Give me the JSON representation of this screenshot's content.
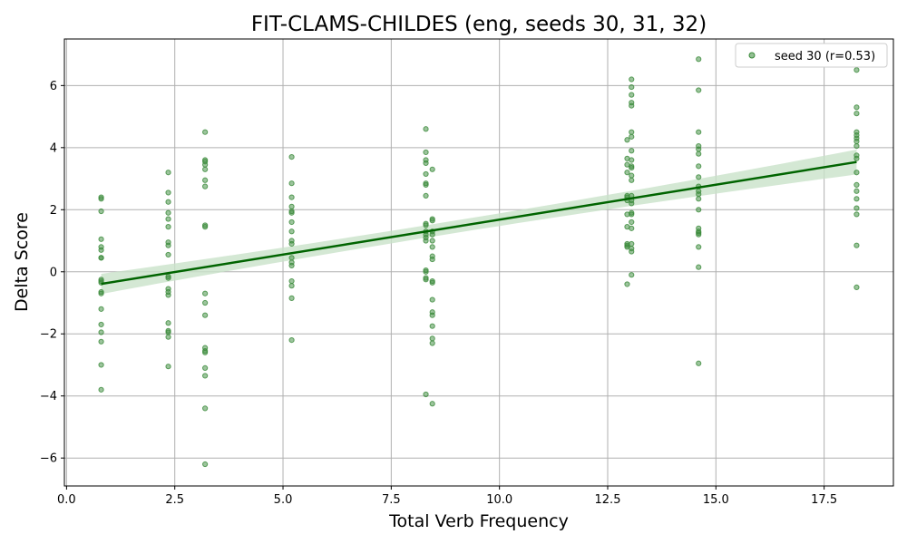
{
  "chart_data": {
    "type": "scatter",
    "title": "FIT-CLAMS-CHILDES (eng, seeds 30, 31, 32)",
    "xlabel": "Total Verb Frequency",
    "ylabel": "Delta Score",
    "xlim": [
      -0.05,
      19.1
    ],
    "ylim": [
      -6.9,
      7.5
    ],
    "x_ticks": [
      0.0,
      2.5,
      5.0,
      7.5,
      10.0,
      12.5,
      15.0,
      17.5
    ],
    "x_tick_labels": [
      "0.0",
      "2.5",
      "5.0",
      "7.5",
      "10.0",
      "12.5",
      "15.0",
      "17.5"
    ],
    "y_ticks": [
      -6,
      -4,
      -2,
      0,
      2,
      4,
      6
    ],
    "y_tick_labels": [
      "−6",
      "−4",
      "−2",
      "0",
      "2",
      "4",
      "6"
    ],
    "grid": true,
    "legend_position": "top-right",
    "series": [
      {
        "name": "seed 30 (r=0.53)",
        "color": "#3a8a3a",
        "points": [
          [
            0.8,
            2.4
          ],
          [
            0.8,
            2.35
          ],
          [
            0.8,
            1.95
          ],
          [
            0.8,
            1.05
          ],
          [
            0.8,
            0.8
          ],
          [
            0.8,
            0.7
          ],
          [
            0.8,
            0.45
          ],
          [
            0.8,
            0.45
          ],
          [
            0.8,
            -0.25
          ],
          [
            0.8,
            -0.3
          ],
          [
            0.8,
            -0.35
          ],
          [
            0.8,
            -0.65
          ],
          [
            0.8,
            -0.7
          ],
          [
            0.8,
            -1.2
          ],
          [
            0.8,
            -1.7
          ],
          [
            0.8,
            -1.95
          ],
          [
            0.8,
            -2.25
          ],
          [
            0.8,
            -3.0
          ],
          [
            0.8,
            -3.8
          ],
          [
            2.35,
            3.2
          ],
          [
            2.35,
            2.55
          ],
          [
            2.35,
            2.25
          ],
          [
            2.35,
            1.9
          ],
          [
            2.35,
            1.7
          ],
          [
            2.35,
            1.45
          ],
          [
            2.35,
            0.95
          ],
          [
            2.35,
            0.85
          ],
          [
            2.35,
            0.55
          ],
          [
            2.35,
            -0.15
          ],
          [
            2.35,
            -0.2
          ],
          [
            2.35,
            -0.55
          ],
          [
            2.35,
            -0.65
          ],
          [
            2.35,
            -0.75
          ],
          [
            2.35,
            -1.65
          ],
          [
            2.35,
            -1.9
          ],
          [
            2.35,
            -1.95
          ],
          [
            2.35,
            -2.1
          ],
          [
            2.35,
            -3.05
          ],
          [
            3.2,
            4.5
          ],
          [
            3.2,
            3.6
          ],
          [
            3.2,
            3.55
          ],
          [
            3.2,
            3.45
          ],
          [
            3.2,
            3.3
          ],
          [
            3.2,
            2.95
          ],
          [
            3.2,
            2.75
          ],
          [
            3.2,
            1.5
          ],
          [
            3.2,
            1.45
          ],
          [
            3.2,
            -0.7
          ],
          [
            3.2,
            -1.0
          ],
          [
            3.2,
            -1.4
          ],
          [
            3.2,
            -2.45
          ],
          [
            3.2,
            -2.55
          ],
          [
            3.2,
            -2.6
          ],
          [
            3.2,
            -3.1
          ],
          [
            3.2,
            -3.35
          ],
          [
            3.2,
            -4.4
          ],
          [
            3.2,
            -6.2
          ],
          [
            5.2,
            3.7
          ],
          [
            5.2,
            2.85
          ],
          [
            5.2,
            2.4
          ],
          [
            5.2,
            2.1
          ],
          [
            5.2,
            1.95
          ],
          [
            5.2,
            1.9
          ],
          [
            5.2,
            1.6
          ],
          [
            5.2,
            1.3
          ],
          [
            5.2,
            1.0
          ],
          [
            5.2,
            0.9
          ],
          [
            5.2,
            0.45
          ],
          [
            5.2,
            0.3
          ],
          [
            5.2,
            0.2
          ],
          [
            5.2,
            -0.3
          ],
          [
            5.2,
            -0.45
          ],
          [
            5.2,
            -0.85
          ],
          [
            5.2,
            -2.2
          ],
          [
            8.3,
            4.6
          ],
          [
            8.3,
            3.85
          ],
          [
            8.3,
            3.6
          ],
          [
            8.3,
            3.5
          ],
          [
            8.3,
            3.15
          ],
          [
            8.3,
            2.85
          ],
          [
            8.3,
            2.8
          ],
          [
            8.3,
            2.45
          ],
          [
            8.3,
            1.55
          ],
          [
            8.3,
            1.5
          ],
          [
            8.3,
            1.3
          ],
          [
            8.3,
            1.2
          ],
          [
            8.3,
            1.1
          ],
          [
            8.3,
            1.0
          ],
          [
            8.3,
            0.05
          ],
          [
            8.3,
            0.0
          ],
          [
            8.3,
            -0.2
          ],
          [
            8.3,
            -0.25
          ],
          [
            8.3,
            -3.95
          ],
          [
            8.45,
            3.3
          ],
          [
            8.45,
            1.7
          ],
          [
            8.45,
            1.65
          ],
          [
            8.45,
            1.3
          ],
          [
            8.45,
            1.2
          ],
          [
            8.45,
            1.0
          ],
          [
            8.45,
            0.8
          ],
          [
            8.45,
            0.5
          ],
          [
            8.45,
            0.4
          ],
          [
            8.45,
            -0.3
          ],
          [
            8.45,
            -0.35
          ],
          [
            8.45,
            -0.9
          ],
          [
            8.45,
            -1.3
          ],
          [
            8.45,
            -1.4
          ],
          [
            8.45,
            -1.75
          ],
          [
            8.45,
            -2.15
          ],
          [
            8.45,
            -2.3
          ],
          [
            8.45,
            -4.25
          ],
          [
            12.95,
            4.25
          ],
          [
            12.95,
            3.65
          ],
          [
            12.95,
            3.45
          ],
          [
            12.95,
            3.2
          ],
          [
            12.95,
            2.45
          ],
          [
            12.95,
            2.4
          ],
          [
            12.95,
            2.3
          ],
          [
            12.95,
            1.85
          ],
          [
            12.95,
            1.45
          ],
          [
            12.95,
            0.9
          ],
          [
            12.95,
            0.85
          ],
          [
            12.95,
            0.8
          ],
          [
            12.95,
            -0.4
          ],
          [
            13.05,
            6.2
          ],
          [
            13.05,
            5.95
          ],
          [
            13.05,
            5.7
          ],
          [
            13.05,
            5.45
          ],
          [
            13.05,
            5.35
          ],
          [
            13.05,
            4.5
          ],
          [
            13.05,
            4.35
          ],
          [
            13.05,
            3.9
          ],
          [
            13.05,
            3.6
          ],
          [
            13.05,
            3.4
          ],
          [
            13.05,
            3.35
          ],
          [
            13.05,
            3.1
          ],
          [
            13.05,
            2.95
          ],
          [
            13.05,
            2.45
          ],
          [
            13.05,
            2.3
          ],
          [
            13.05,
            2.2
          ],
          [
            13.05,
            1.9
          ],
          [
            13.05,
            1.85
          ],
          [
            13.05,
            1.6
          ],
          [
            13.05,
            1.4
          ],
          [
            13.05,
            0.9
          ],
          [
            13.05,
            0.75
          ],
          [
            13.05,
            0.65
          ],
          [
            13.05,
            -0.1
          ],
          [
            14.6,
            6.85
          ],
          [
            14.6,
            5.85
          ],
          [
            14.6,
            4.5
          ],
          [
            14.6,
            4.05
          ],
          [
            14.6,
            3.95
          ],
          [
            14.6,
            3.8
          ],
          [
            14.6,
            3.4
          ],
          [
            14.6,
            3.05
          ],
          [
            14.6,
            2.75
          ],
          [
            14.6,
            2.6
          ],
          [
            14.6,
            2.5
          ],
          [
            14.6,
            2.35
          ],
          [
            14.6,
            2.0
          ],
          [
            14.6,
            1.4
          ],
          [
            14.6,
            1.3
          ],
          [
            14.6,
            1.25
          ],
          [
            14.6,
            1.2
          ],
          [
            14.6,
            0.8
          ],
          [
            14.6,
            0.15
          ],
          [
            14.6,
            -2.95
          ],
          [
            18.25,
            7.1
          ],
          [
            18.25,
            6.5
          ],
          [
            18.25,
            5.3
          ],
          [
            18.25,
            5.1
          ],
          [
            18.25,
            4.5
          ],
          [
            18.25,
            4.4
          ],
          [
            18.25,
            4.3
          ],
          [
            18.25,
            4.2
          ],
          [
            18.25,
            4.05
          ],
          [
            18.25,
            3.75
          ],
          [
            18.25,
            3.65
          ],
          [
            18.25,
            3.2
          ],
          [
            18.25,
            2.8
          ],
          [
            18.25,
            2.6
          ],
          [
            18.25,
            2.35
          ],
          [
            18.25,
            2.05
          ],
          [
            18.25,
            1.85
          ],
          [
            18.25,
            0.85
          ],
          [
            18.25,
            -0.5
          ]
        ],
        "regression": {
          "x_range": [
            0.8,
            18.25
          ],
          "slope": 0.225,
          "intercept": -0.57,
          "line_color": "#006400",
          "ci_color": "#c9e2c9",
          "ci_half_width_ends": 0.4,
          "ci_half_width_mid": 0.2,
          "ci_mid_x": 8.5
        }
      }
    ]
  }
}
